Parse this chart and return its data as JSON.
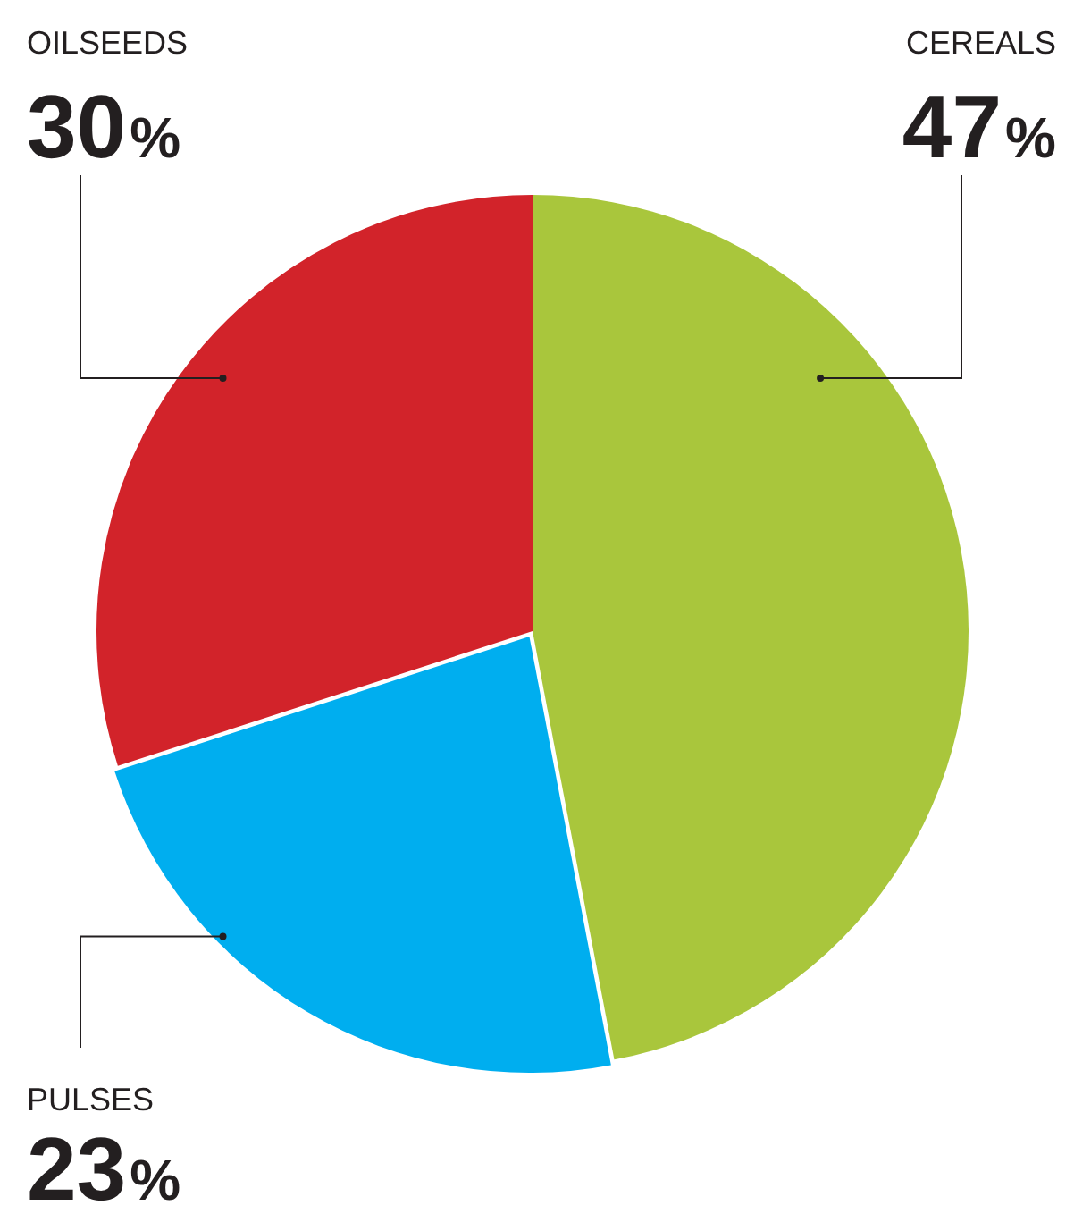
{
  "chart_data": {
    "type": "pie",
    "categories": [
      "CEREALS",
      "PULSES",
      "OILSEEDS"
    ],
    "values": [
      47,
      23,
      30
    ],
    "colors": [
      "#a9c63c",
      "#00aeef",
      "#d2232a"
    ],
    "value_labels": [
      "47%",
      "23%",
      "30%"
    ],
    "legend": false
  }
}
